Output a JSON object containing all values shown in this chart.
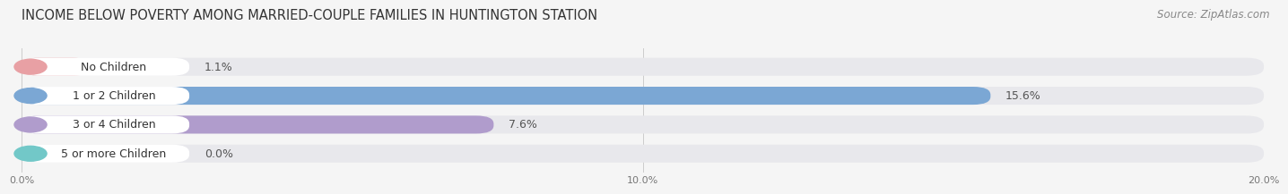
{
  "title": "INCOME BELOW POVERTY AMONG MARRIED-COUPLE FAMILIES IN HUNTINGTON STATION",
  "source": "Source: ZipAtlas.com",
  "categories": [
    "No Children",
    "1 or 2 Children",
    "3 or 4 Children",
    "5 or more Children"
  ],
  "values": [
    1.1,
    15.6,
    7.6,
    0.0
  ],
  "bar_colors": [
    "#e8a0a4",
    "#7ba7d4",
    "#b09ccc",
    "#72c8c8"
  ],
  "background_color": "#f5f5f5",
  "bar_bg_color": "#e8e8ec",
  "bar_white_bg": "#ffffff",
  "xlim": [
    0,
    20.0
  ],
  "xticks": [
    0.0,
    10.0,
    20.0
  ],
  "xtick_labels": [
    "0.0%",
    "10.0%",
    "20.0%"
  ],
  "title_fontsize": 10.5,
  "source_fontsize": 8.5,
  "bar_height": 0.62,
  "value_fontsize": 9,
  "label_fontsize": 9
}
